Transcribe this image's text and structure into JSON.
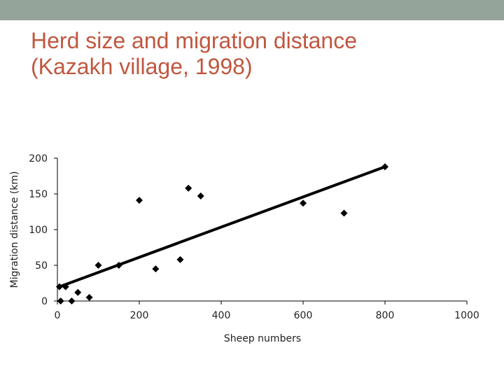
{
  "slide": {
    "title_line1": "Herd size and migration distance",
    "title_line2": "(Kazakh village, 1998)",
    "colors": {
      "top_bar": "#95a49a",
      "title": "#c0573f",
      "marks": "#000000"
    }
  },
  "chart_data": {
    "type": "scatter",
    "title": "",
    "xlabel": "Sheep numbers",
    "ylabel": "Migration distance (km)",
    "xlim": [
      0,
      1000
    ],
    "ylim": [
      0,
      200
    ],
    "xticks": [
      0,
      200,
      400,
      600,
      800,
      1000
    ],
    "yticks": [
      0,
      50,
      100,
      150,
      200
    ],
    "grid": false,
    "legend": "none",
    "marker": "diamond",
    "series": [
      {
        "points": [
          {
            "x": 5,
            "y": 20
          },
          {
            "x": 20,
            "y": 20
          },
          {
            "x": 8,
            "y": 0
          },
          {
            "x": 35,
            "y": 0
          },
          {
            "x": 50,
            "y": 12
          },
          {
            "x": 78,
            "y": 5
          },
          {
            "x": 100,
            "y": 50
          },
          {
            "x": 150,
            "y": 50
          },
          {
            "x": 200,
            "y": 141
          },
          {
            "x": 240,
            "y": 45
          },
          {
            "x": 300,
            "y": 58
          },
          {
            "x": 320,
            "y": 158
          },
          {
            "x": 350,
            "y": 147
          },
          {
            "x": 600,
            "y": 137
          },
          {
            "x": 700,
            "y": 123
          },
          {
            "x": 800,
            "y": 188
          }
        ]
      }
    ],
    "trendline": {
      "x": [
        5,
        800
      ],
      "y": [
        20,
        188
      ]
    }
  }
}
